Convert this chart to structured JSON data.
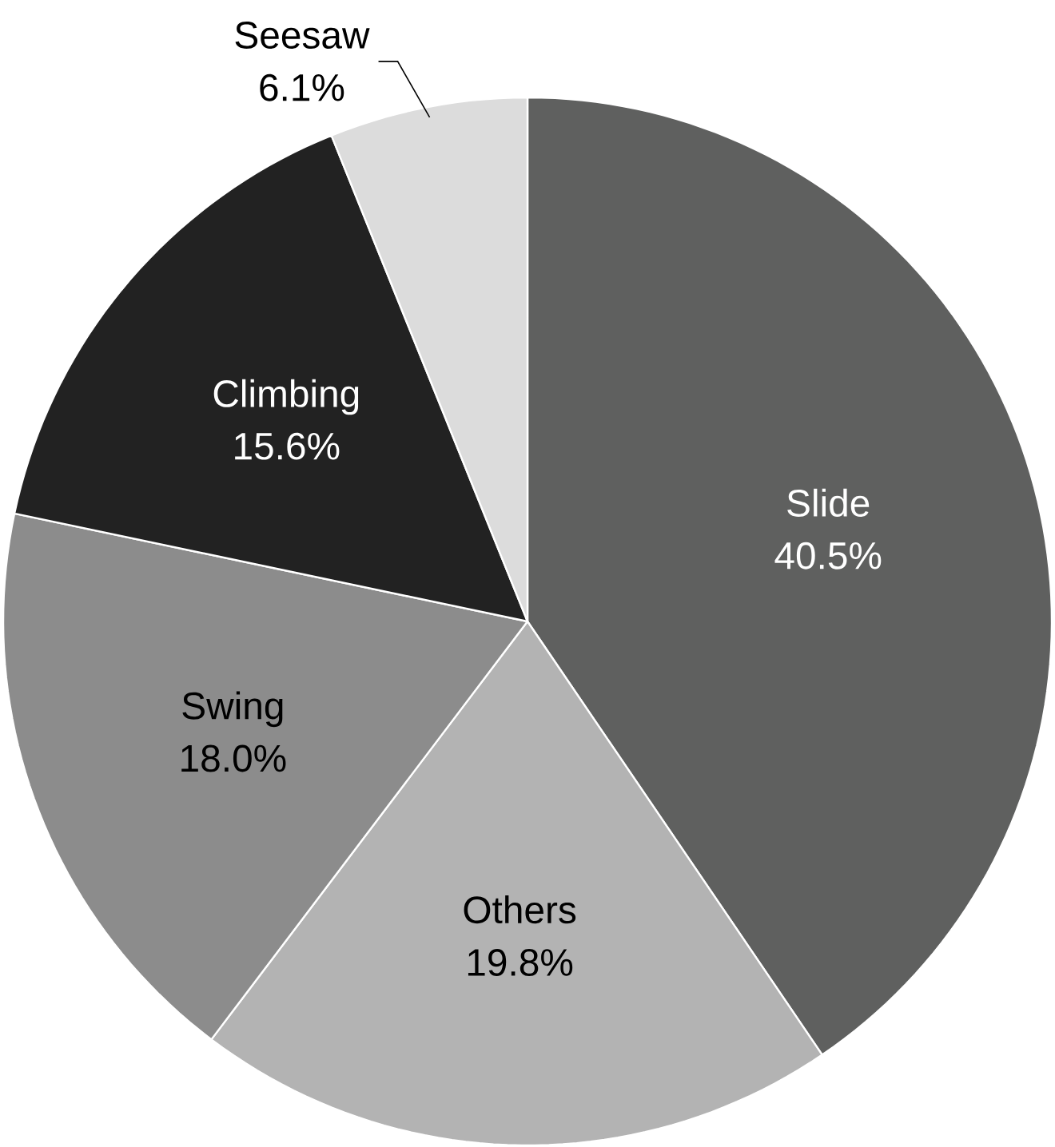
{
  "chart_data": {
    "type": "pie",
    "categories": [
      "Slide",
      "Others",
      "Swing",
      "Climbing",
      "Seesaw"
    ],
    "values": [
      40.5,
      19.8,
      18.0,
      15.6,
      6.1
    ],
    "value_labels": [
      "40.5%",
      "19.8%",
      "18.0%",
      "15.6%",
      "6.1%"
    ],
    "colors": [
      "#5f605f",
      "#b3b3b3",
      "#8c8c8c",
      "#222222",
      "#dcdcdc"
    ]
  }
}
